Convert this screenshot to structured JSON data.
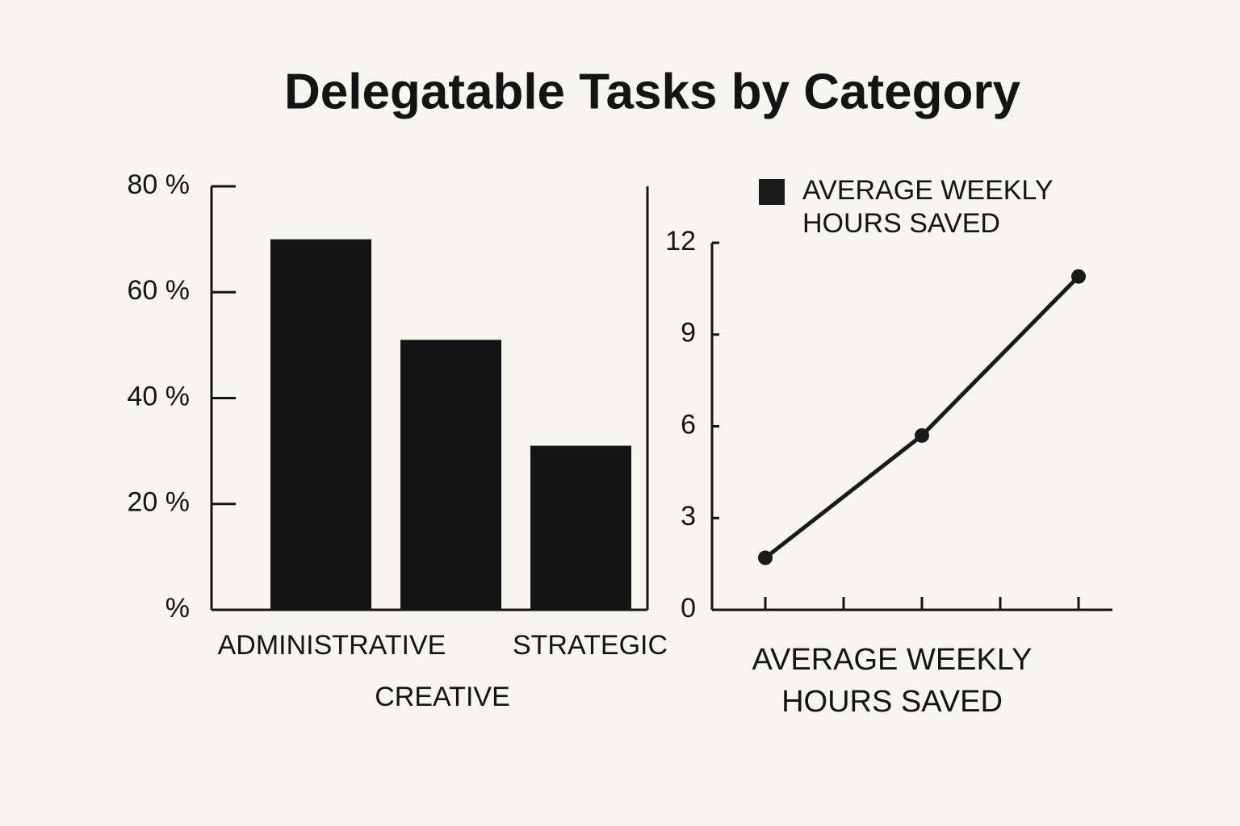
{
  "title": "Delegatable Tasks by Category",
  "chart_data": [
    {
      "type": "bar",
      "categories": [
        "ADMINISTRATIVE",
        "CREATIVE",
        "STRATEGIC"
      ],
      "values": [
        70,
        51,
        31
      ],
      "color": "#141414",
      "ylim": [
        0,
        80
      ],
      "yticks": [
        {
          "value": 0,
          "label": "%"
        },
        {
          "value": 20,
          "label": "20 %"
        },
        {
          "value": 40,
          "label": "40 %"
        },
        {
          "value": 60,
          "label": "60 %"
        },
        {
          "value": 80,
          "label": "80 %"
        }
      ]
    },
    {
      "type": "line",
      "categories": [
        null,
        null,
        null
      ],
      "series": [
        {
          "name": "AVERAGE WEEKLY HOURS SAVED",
          "color": "#1a1a1a",
          "values": [
            1.7,
            5.7,
            10.9
          ]
        }
      ],
      "ylim": [
        0,
        12
      ],
      "yticks": [
        0,
        3,
        6,
        9,
        12
      ],
      "x_label": "AVERAGE WEEKLY HOURS SAVED",
      "legend": "top"
    }
  ]
}
